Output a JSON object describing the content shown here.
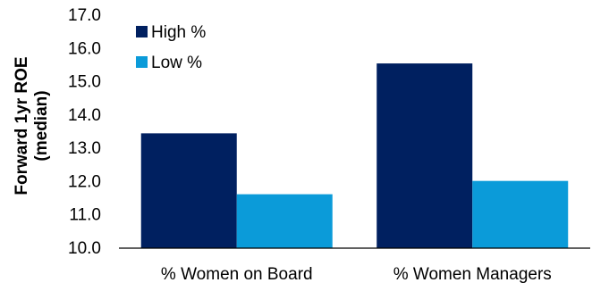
{
  "chart_data": {
    "type": "bar",
    "ylabel": [
      "Forward 1yr ROE",
      "(median)"
    ],
    "xlabel": "",
    "categories": [
      "% Women on Board",
      "% Women Managers"
    ],
    "series": [
      {
        "name": "High %",
        "color": "#002060",
        "values": [
          13.45,
          15.55
        ]
      },
      {
        "name": "Low %",
        "color": "#0b9bd9",
        "values": [
          11.62,
          12.02
        ]
      }
    ],
    "ylim": [
      10.0,
      17.0
    ],
    "yticks": [
      "10.0",
      "11.0",
      "12.0",
      "13.0",
      "14.0",
      "15.0",
      "16.0",
      "17.0"
    ],
    "grid": false,
    "legend": "top-left"
  }
}
